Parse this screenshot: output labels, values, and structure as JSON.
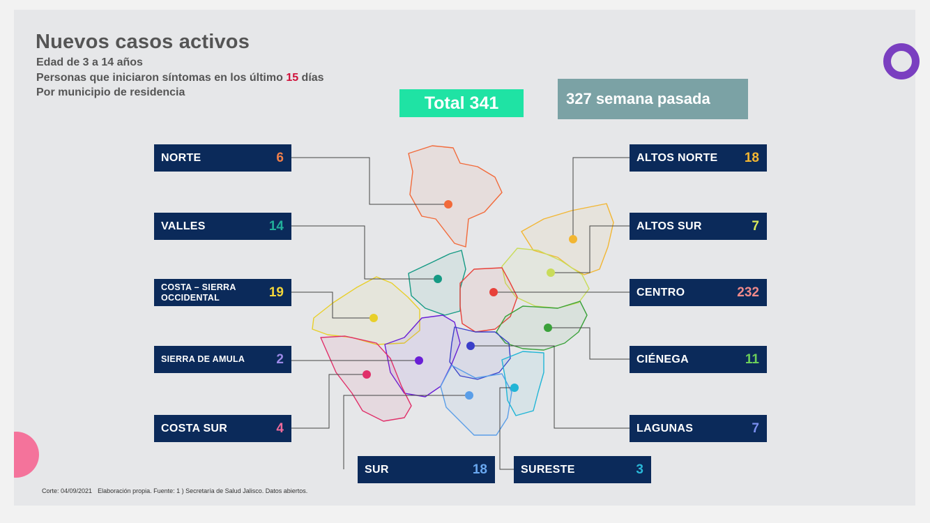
{
  "title": "Nuevos casos activos",
  "subtitle": {
    "line1": "Edad de 3 a 14 años",
    "line2_prefix": "Personas que iniciaron síntomas en los último ",
    "line2_days": "15",
    "line2_suffix": " días",
    "line3": "Por municipio de residencia"
  },
  "total_label": "Total 341",
  "previous_label": "327 semana pasada",
  "regions": [
    {
      "name": "NORTE",
      "value": "6",
      "color": "#f26a3a",
      "value_color": "#f07f4a"
    },
    {
      "name": "VALLES",
      "value": "14",
      "color": "#159a84",
      "value_color": "#22b09a"
    },
    {
      "name": "COSTA – SIERRA OCCIDENTAL",
      "value": "19",
      "color": "#e8cf2a",
      "value_color": "#f3d63a"
    },
    {
      "name": "SIERRA DE AMULA",
      "value": "2",
      "color": "#6a1fd6",
      "value_color": "#9d8ae8"
    },
    {
      "name": "COSTA SUR",
      "value": "4",
      "color": "#e0306a",
      "value_color": "#f06a9a"
    },
    {
      "name": "ALTOS NORTE",
      "value": "18",
      "color": "#f2b632",
      "value_color": "#f5b731"
    },
    {
      "name": "ALTOS SUR",
      "value": "7",
      "color": "#c9dc5a",
      "value_color": "#d8e85a"
    },
    {
      "name": "CENTRO",
      "value": "232",
      "color": "#e8413a",
      "value_color": "#f08a8a"
    },
    {
      "name": "CIÉNEGA",
      "value": "11",
      "color": "#3aa13a",
      "value_color": "#6ccf5a"
    },
    {
      "name": "LAGUNAS",
      "value": "7",
      "color": "#3a3fc9",
      "value_color": "#7a8ff0"
    },
    {
      "name": "SUR",
      "value": "18",
      "color": "#5a9ee8",
      "value_color": "#6aa8f0"
    },
    {
      "name": "SURESTE",
      "value": "3",
      "color": "#20b5d6",
      "value_color": "#2ab8d8"
    }
  ],
  "footer": {
    "corte": "Corte: 04/09/2021",
    "fuente": "Elaboración propia. Fuente: 1 ) Secretaría de Salud Jalisco. Datos abiertos."
  }
}
